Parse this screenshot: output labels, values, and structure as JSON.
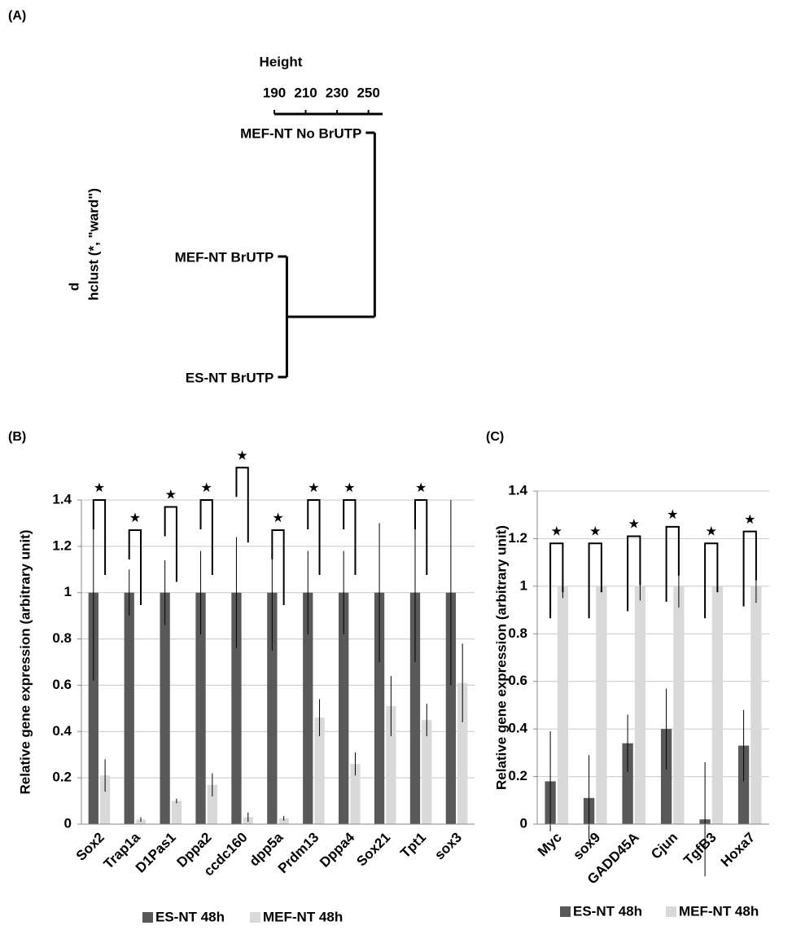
{
  "chart_data": [
    {
      "type": "dendrogram",
      "panel_label": "(A)",
      "xlabel": "Height",
      "ylabel": "hclust (*, \"ward\")",
      "ylabel_top": "d",
      "leaves": [
        "MEF-NT No BrUTP",
        "MEF-NT BrUTP",
        "ES-NT BrUTP"
      ],
      "merges": [
        {
          "height": 198
        },
        {
          "height": 254
        }
      ],
      "xlim": [
        190,
        259
      ],
      "xticks": [
        190,
        210,
        230,
        250
      ]
    },
    {
      "type": "bar",
      "panel_label": "(B)",
      "ylabel": "Relative gene expression (arbitrary unit)",
      "categories": [
        "Sox2",
        "Trap1a",
        "D1Pas1",
        "Dppa2",
        "ccdc160",
        "dpp5a",
        "Prdm13",
        "Dppa4",
        "Sox21",
        "Tpt1",
        "sox3"
      ],
      "series": [
        {
          "name": "ES-NT 48h",
          "color": "#595959",
          "values": [
            1,
            1,
            1,
            1,
            1,
            1,
            1,
            1,
            1,
            1,
            1
          ],
          "errors": [
            0.38,
            0.1,
            0.14,
            0.18,
            0.24,
            0.25,
            0.18,
            0.18,
            0.3,
            0.3,
            0.4
          ]
        },
        {
          "name": "MEF-NT 48h",
          "color": "#d9d9d9",
          "values": [
            0.21,
            0.02,
            0.1,
            0.17,
            0.03,
            0.025,
            0.46,
            0.26,
            0.51,
            0.45,
            0.61
          ],
          "errors": [
            0.07,
            0.01,
            0.01,
            0.05,
            0.02,
            0.01,
            0.08,
            0.05,
            0.13,
            0.07,
            0.17
          ]
        }
      ],
      "annotations": [
        {
          "category": "Sox2",
          "text": "★",
          "y": 1.4
        },
        {
          "category": "Trap1a",
          "text": "★",
          "y": 1.27
        },
        {
          "category": "D1Pas1",
          "text": "★",
          "y": 1.37
        },
        {
          "category": "Dppa2",
          "text": "★",
          "y": 1.4
        },
        {
          "category": "ccdc160",
          "text": "★",
          "y": 1.54
        },
        {
          "category": "dpp5a",
          "text": "★",
          "y": 1.27
        },
        {
          "category": "Prdm13",
          "text": "★",
          "y": 1.4
        },
        {
          "category": "Dppa4",
          "text": "★",
          "y": 1.4
        },
        {
          "category": "Tpt1",
          "text": "★",
          "y": 1.4
        }
      ],
      "ylim": [
        0,
        1.4
      ],
      "yticks": [
        0,
        0.2,
        0.4,
        0.6,
        0.8,
        1,
        1.2,
        1.4
      ],
      "grid": true,
      "legend": "bottom"
    },
    {
      "type": "bar",
      "panel_label": "(C)",
      "ylabel": "Relative gene expression (arbitrary unit)",
      "categories": [
        "Myc",
        "sox9",
        "GADD45A",
        "Cjun",
        "TgfB3",
        "Hoxa7"
      ],
      "series": [
        {
          "name": "ES-NT 48h",
          "color": "#595959",
          "values": [
            0.18,
            0.11,
            0.34,
            0.4,
            0.02,
            0.33
          ],
          "errors": [
            0.21,
            0.18,
            0.12,
            0.17,
            0.24,
            0.15
          ]
        },
        {
          "name": "MEF-NT 48h",
          "color": "#d9d9d9",
          "values": [
            1,
            1,
            1,
            1,
            1,
            1
          ],
          "errors": [
            0.05,
            0.02,
            0.06,
            0.09,
            0.01,
            0.07
          ]
        }
      ],
      "annotations": [
        {
          "category": "Myc",
          "text": "★",
          "y": 1.18
        },
        {
          "category": "sox9",
          "text": "★",
          "y": 1.18
        },
        {
          "category": "GADD45A",
          "text": "★",
          "y": 1.21
        },
        {
          "category": "Cjun",
          "text": "★",
          "y": 1.25
        },
        {
          "category": "TgfB3",
          "text": "★",
          "y": 1.18
        },
        {
          "category": "Hoxa7",
          "text": "★",
          "y": 1.23
        }
      ],
      "ylim": [
        0,
        1.4
      ],
      "yticks": [
        0,
        0.2,
        0.4,
        0.6,
        0.8,
        1,
        1.2,
        1.4
      ],
      "grid": true,
      "legend": "bottom"
    }
  ]
}
